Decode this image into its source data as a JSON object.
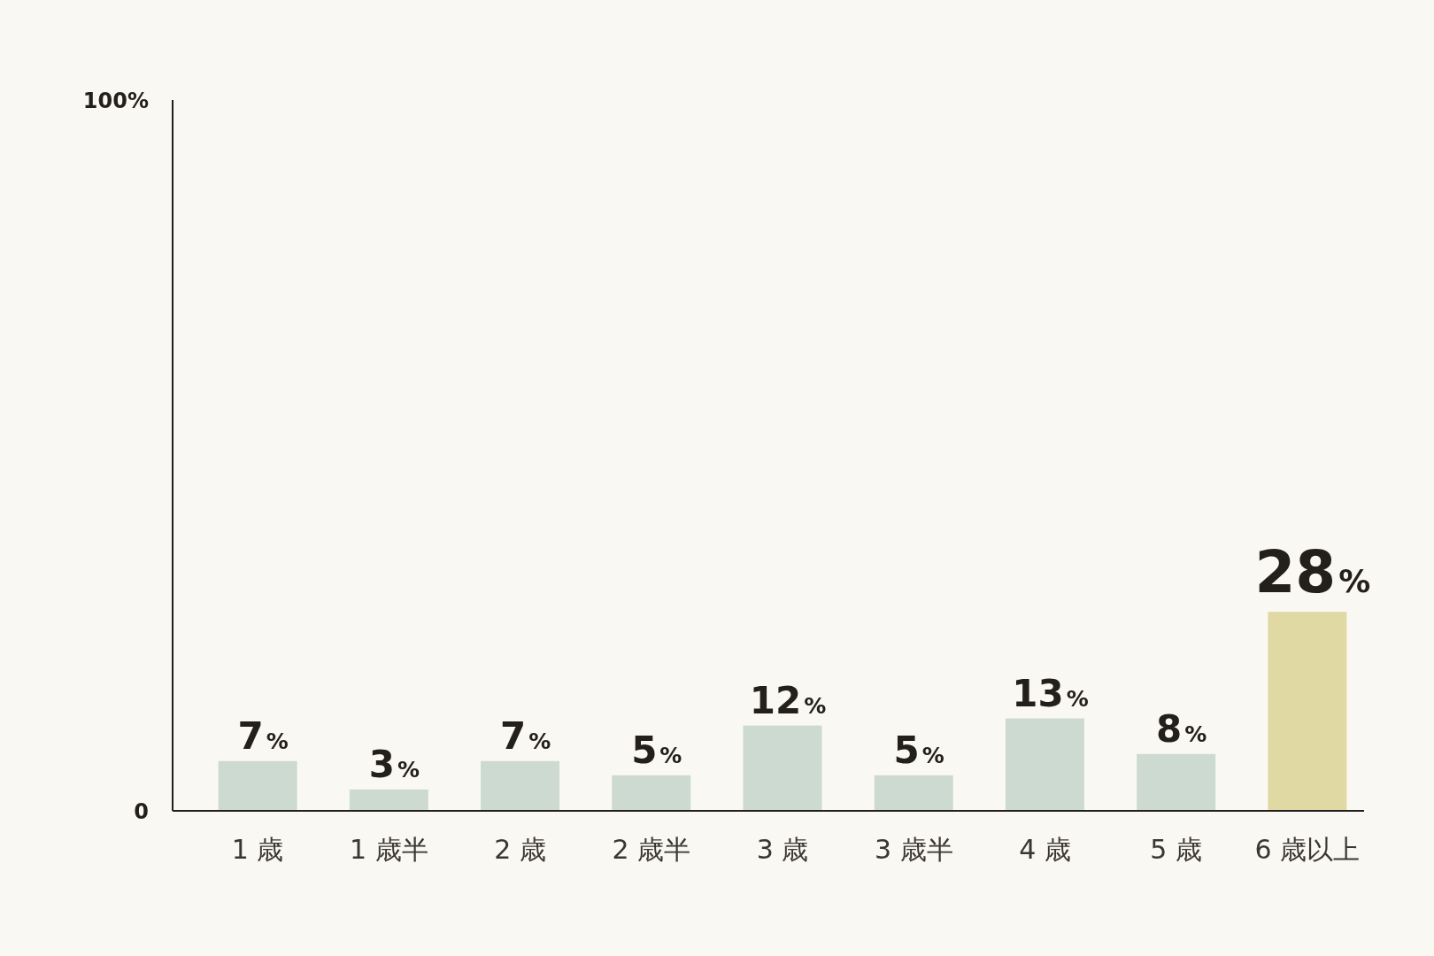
{
  "chart_data": {
    "type": "bar",
    "categories": [
      "1 歳",
      "1 歳半",
      "2 歳",
      "2 歳半",
      "3 歳",
      "3 歳半",
      "4 歳",
      "5 歳",
      "6 歳以上"
    ],
    "values": [
      7,
      3,
      7,
      5,
      12,
      5,
      13,
      8,
      28
    ],
    "colors": [
      "#cddad2",
      "#cddad2",
      "#cddad2",
      "#cddad2",
      "#cddad2",
      "#cddad2",
      "#cddad2",
      "#cddad2",
      "#e0d9a3"
    ],
    "value_labels": [
      "7%",
      "3%",
      "7%",
      "5%",
      "12%",
      "5%",
      "13%",
      "8%",
      "28%"
    ],
    "ylim": [
      0,
      100
    ],
    "yticks": [
      {
        "value": 0,
        "label": "0"
      },
      {
        "value": 100,
        "label": "100%"
      }
    ],
    "grid": false
  }
}
